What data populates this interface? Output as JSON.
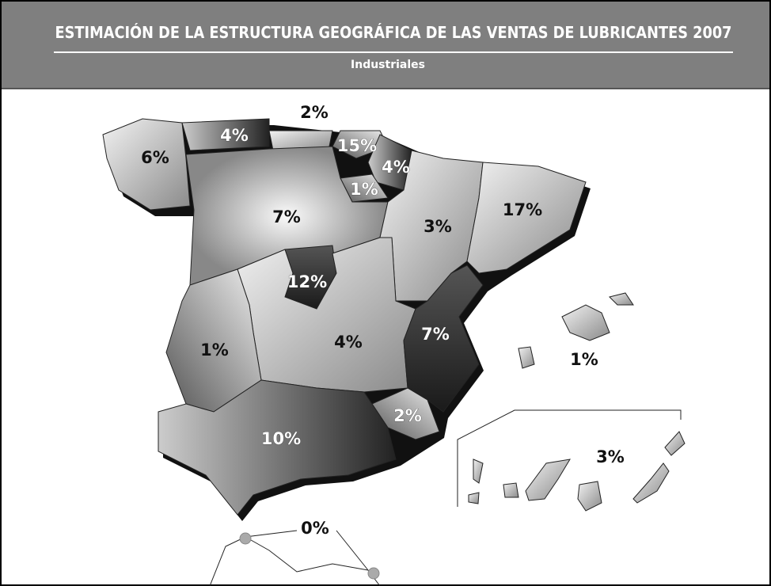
{
  "header": {
    "title": "ESTIMACIÓN DE LA ESTRUCTURA GEOGRÁFICA DE LAS VENTAS DE LUBRICANTES 2007",
    "subtitle": "Industriales"
  },
  "regions": [
    {
      "label": "6%"
    },
    {
      "label": "4%"
    },
    {
      "label": "2%"
    },
    {
      "label": "15%"
    },
    {
      "label": "4%"
    },
    {
      "label": "1%"
    },
    {
      "label": "7%"
    },
    {
      "label": "3%"
    },
    {
      "label": "17%"
    },
    {
      "label": "12%"
    },
    {
      "label": "7%"
    },
    {
      "label": "1%"
    },
    {
      "label": "4%"
    },
    {
      "label": "1%"
    },
    {
      "label": "2%"
    },
    {
      "label": "10%"
    },
    {
      "label": "3%"
    },
    {
      "label": "0%"
    }
  ]
}
